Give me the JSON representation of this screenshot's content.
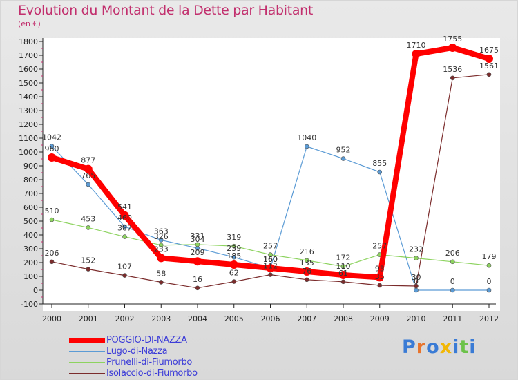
{
  "title": "Evolution du Montant de la Dette par Habitant",
  "unit_label": "(en €)",
  "logo_text": "Proxiti",
  "chart_data": {
    "type": "line",
    "x": [
      2000,
      2001,
      2002,
      2003,
      2004,
      2005,
      2006,
      2007,
      2008,
      2009,
      2010,
      2011,
      2012
    ],
    "ylim": [
      -100,
      1800
    ],
    "yticks": [
      -100,
      0,
      100,
      200,
      300,
      400,
      500,
      600,
      700,
      800,
      900,
      1000,
      1100,
      1200,
      1300,
      1400,
      1500,
      1600,
      1700,
      1800
    ],
    "grid": false,
    "legend_placement": "bottom-left",
    "series": [
      {
        "name": "POGGIO-DI-NAZZA",
        "color": "#ff0000",
        "values": [
          960,
          877,
          541,
          233,
          209,
          185,
          160,
          135,
          110,
          93,
          1710,
          1755,
          1675
        ],
        "labels": [
          "960",
          "877",
          "541",
          "233",
          "209",
          "185",
          "160",
          "135",
          "110",
          "93",
          "1710",
          "1755",
          "1675"
        ]
      },
      {
        "name": "Lugo-di-Nazza",
        "color": "#5b9bd5",
        "values": [
          1042,
          765,
          460,
          363,
          304,
          239,
          160,
          1040,
          952,
          855,
          0,
          0,
          0
        ],
        "labels": [
          "1042",
          "765",
          "460",
          "363",
          "304",
          "239",
          "160",
          "1040",
          "952",
          "855",
          "0",
          "0",
          "0"
        ]
      },
      {
        "name": "Prunelli-di-Fiumorbo",
        "color": "#8dd35f",
        "values": [
          510,
          453,
          387,
          326,
          331,
          319,
          257,
          216,
          172,
          257,
          232,
          206,
          179
        ],
        "labels": [
          "510",
          "453",
          "387",
          "326",
          "331",
          "319",
          "257",
          "216",
          "172",
          "257",
          "232",
          "206",
          "179"
        ]
      },
      {
        "name": "Isolaccio-di-Fiumorbo",
        "color": "#7b2c2c",
        "values": [
          206,
          152,
          107,
          58,
          16,
          62,
          112,
          76,
          61,
          35,
          30,
          1536,
          1561
        ],
        "labels": [
          "206",
          "152",
          "107",
          "58",
          "16",
          "62",
          "112",
          "76",
          "61",
          "35",
          "30",
          "1536",
          "1561"
        ]
      }
    ]
  }
}
